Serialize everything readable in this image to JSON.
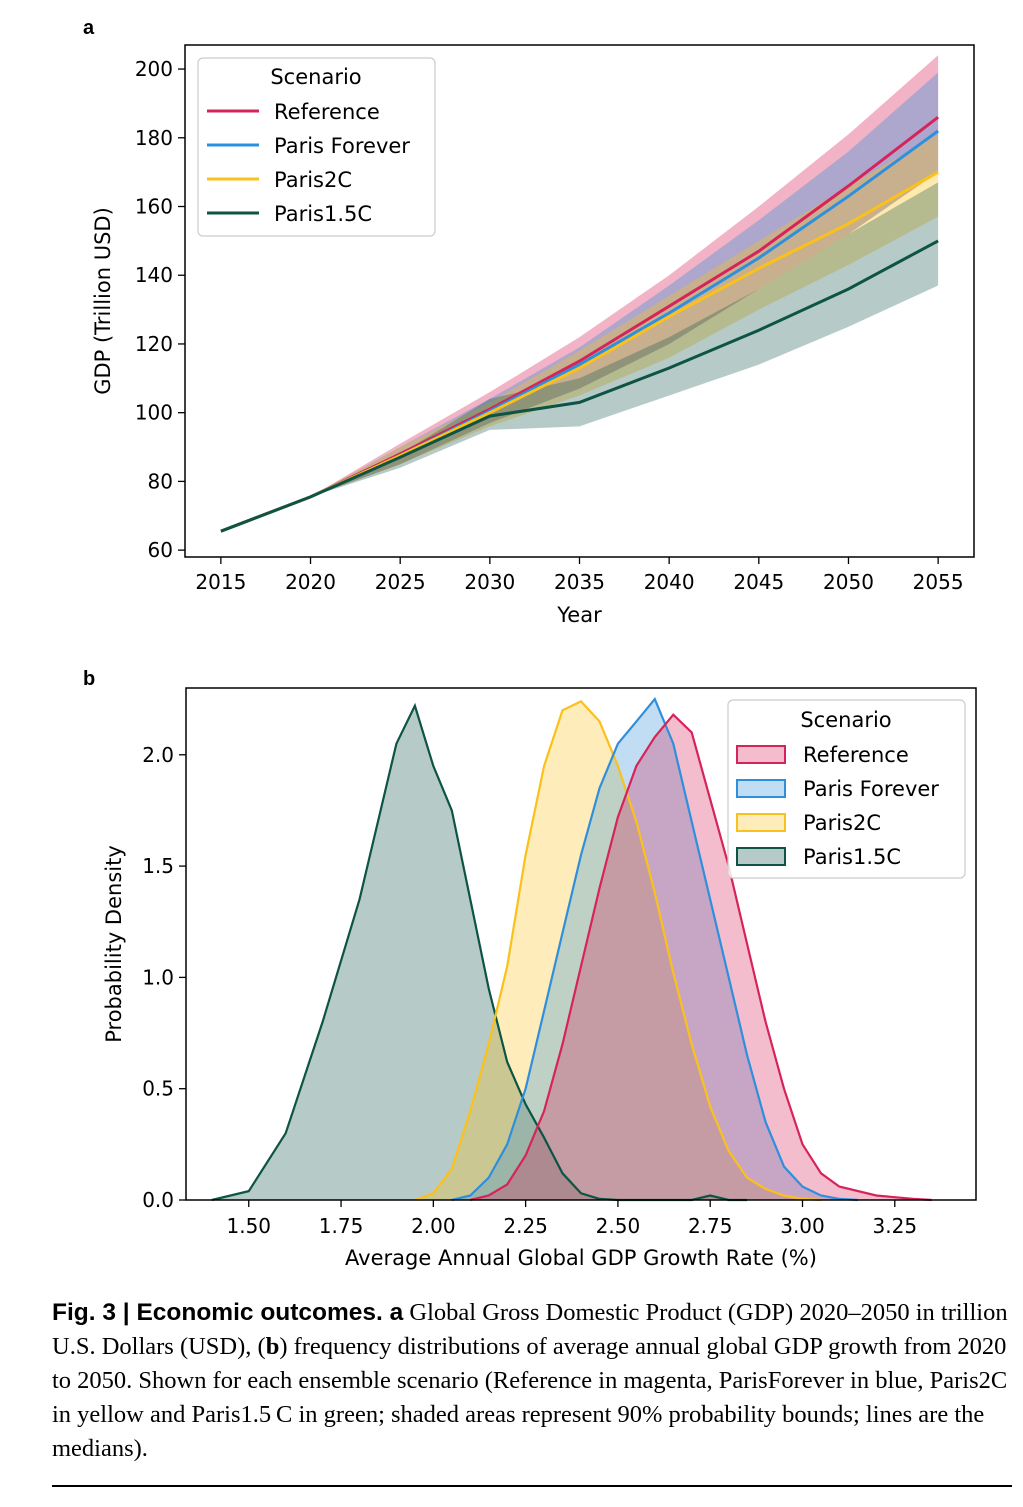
{
  "figure": {
    "panel_a_label": "a",
    "panel_b_label": "b",
    "caption_lead": "Fig. 3 | Economic outcomes. a",
    "caption_body": " Global Gross Domestic Product (GDP) 2020–2050 in trillion U.S. Dollars (USD), (",
    "caption_b": "b",
    "caption_tail": ") frequency distributions of average annual global GDP growth from 2020 to 2050. Shown for each ensemble scenario (Reference in magenta, ParisForever in blue, Paris2C in yellow and Paris1.5 C in green; shaded areas represent 90% probability bounds; lines are the medians)."
  },
  "colors": {
    "Reference": "#d6245a",
    "Paris Forever": "#2e8fdc",
    "Paris2C": "#fbc11b",
    "Paris1.5C": "#0d5445"
  },
  "chart_data": [
    {
      "type": "line",
      "panel": "a",
      "xlabel": "Year",
      "ylabel": "GDP (Trillion USD)",
      "xlim": [
        2013,
        2057
      ],
      "ylim": [
        58,
        207
      ],
      "xticks": [
        2015,
        2020,
        2025,
        2030,
        2035,
        2040,
        2045,
        2050,
        2055
      ],
      "yticks": [
        60,
        80,
        100,
        120,
        140,
        160,
        180,
        200
      ],
      "legend_title": "Scenario",
      "legend_position": "top-left",
      "x": [
        2015,
        2020,
        2025,
        2030,
        2035,
        2040,
        2045,
        2050,
        2055
      ],
      "series": [
        {
          "name": "Reference",
          "median": [
            65.5,
            75.5,
            88,
            101,
            115,
            131,
            147,
            166,
            186
          ],
          "lower": [
            65.5,
            75.5,
            85,
            97,
            107,
            120,
            136,
            152,
            170
          ],
          "upper": [
            65.5,
            75.5,
            91,
            106,
            122,
            140,
            160,
            181,
            204
          ]
        },
        {
          "name": "Paris Forever",
          "median": [
            65.5,
            75.5,
            87.5,
            100.5,
            114,
            129,
            145,
            163,
            182
          ],
          "lower": [
            65.5,
            75.5,
            85,
            97,
            107,
            120,
            136,
            152,
            170
          ],
          "upper": [
            65.5,
            75.5,
            90,
            104,
            119,
            137,
            156,
            176,
            199
          ]
        },
        {
          "name": "Paris2C",
          "median": [
            65.5,
            75.5,
            87.5,
            100,
            113,
            128,
            142,
            155,
            170
          ],
          "lower": [
            65.5,
            75.5,
            85,
            96,
            105,
            116,
            130,
            143,
            157
          ],
          "upper": [
            65.5,
            75.5,
            90,
            103,
            118,
            134,
            150,
            166,
            181
          ]
        },
        {
          "name": "Paris1.5C",
          "median": [
            65.5,
            75.5,
            87,
            99,
            103,
            113,
            124,
            136,
            150
          ],
          "lower": [
            65.5,
            75.5,
            84,
            95,
            96,
            105,
            114,
            125,
            137
          ],
          "upper": [
            65.5,
            75.5,
            88,
            104,
            110,
            122,
            136,
            152,
            167
          ]
        }
      ]
    },
    {
      "type": "area",
      "panel": "b",
      "xlabel": "Average Annual Global GDP Growth Rate (%)",
      "ylabel": "Probability Density",
      "xlim": [
        1.33,
        3.47
      ],
      "ylim": [
        0,
        2.3
      ],
      "xticks": [
        1.5,
        1.75,
        2.0,
        2.25,
        2.5,
        2.75,
        3.0,
        3.25
      ],
      "xtick_labels": [
        "1.50",
        "1.75",
        "2.00",
        "2.25",
        "2.50",
        "2.75",
        "3.00",
        "3.25"
      ],
      "yticks": [
        0.0,
        0.5,
        1.0,
        1.5,
        2.0
      ],
      "ytick_labels": [
        "0.0",
        "0.5",
        "1.0",
        "1.5",
        "2.0"
      ],
      "legend_title": "Scenario",
      "legend_position": "top-right",
      "series": [
        {
          "name": "Paris1.5C",
          "x": [
            1.4,
            1.5,
            1.6,
            1.7,
            1.8,
            1.9,
            1.95,
            2.0,
            2.05,
            2.1,
            2.15,
            2.2,
            2.25,
            2.3,
            2.35,
            2.4,
            2.45,
            2.5,
            2.6,
            2.7,
            2.75,
            2.8,
            2.85
          ],
          "y": [
            0.0,
            0.04,
            0.3,
            0.8,
            1.35,
            2.05,
            2.22,
            1.95,
            1.75,
            1.35,
            0.95,
            0.62,
            0.43,
            0.28,
            0.12,
            0.03,
            0.005,
            0.0,
            0.0,
            0.0,
            0.02,
            0.0,
            0.0
          ]
        },
        {
          "name": "Paris2C",
          "x": [
            1.95,
            2.0,
            2.05,
            2.1,
            2.15,
            2.2,
            2.25,
            2.3,
            2.35,
            2.4,
            2.45,
            2.5,
            2.55,
            2.6,
            2.65,
            2.7,
            2.75,
            2.8,
            2.85,
            2.9,
            2.95,
            3.0,
            3.05
          ],
          "y": [
            0.0,
            0.03,
            0.14,
            0.4,
            0.7,
            1.05,
            1.55,
            1.95,
            2.2,
            2.24,
            2.15,
            1.95,
            1.7,
            1.38,
            1.02,
            0.7,
            0.42,
            0.22,
            0.1,
            0.05,
            0.02,
            0.005,
            0.0
          ]
        },
        {
          "name": "Paris Forever",
          "x": [
            2.05,
            2.1,
            2.15,
            2.2,
            2.25,
            2.3,
            2.35,
            2.4,
            2.45,
            2.5,
            2.55,
            2.6,
            2.65,
            2.7,
            2.75,
            2.8,
            2.85,
            2.9,
            2.95,
            3.0,
            3.05,
            3.1,
            3.15
          ],
          "y": [
            0.0,
            0.02,
            0.1,
            0.25,
            0.5,
            0.85,
            1.2,
            1.55,
            1.85,
            2.05,
            2.15,
            2.25,
            2.05,
            1.7,
            1.35,
            1.0,
            0.65,
            0.35,
            0.15,
            0.06,
            0.02,
            0.005,
            0.0
          ]
        },
        {
          "name": "Reference",
          "x": [
            2.1,
            2.15,
            2.2,
            2.25,
            2.3,
            2.35,
            2.4,
            2.45,
            2.5,
            2.55,
            2.6,
            2.65,
            2.7,
            2.75,
            2.8,
            2.85,
            2.9,
            2.95,
            3.0,
            3.05,
            3.1,
            3.2,
            3.3,
            3.35
          ],
          "y": [
            0.0,
            0.02,
            0.07,
            0.2,
            0.4,
            0.7,
            1.05,
            1.4,
            1.72,
            1.95,
            2.08,
            2.18,
            2.1,
            1.8,
            1.5,
            1.15,
            0.8,
            0.5,
            0.25,
            0.12,
            0.06,
            0.02,
            0.005,
            0.0
          ]
        }
      ]
    }
  ]
}
